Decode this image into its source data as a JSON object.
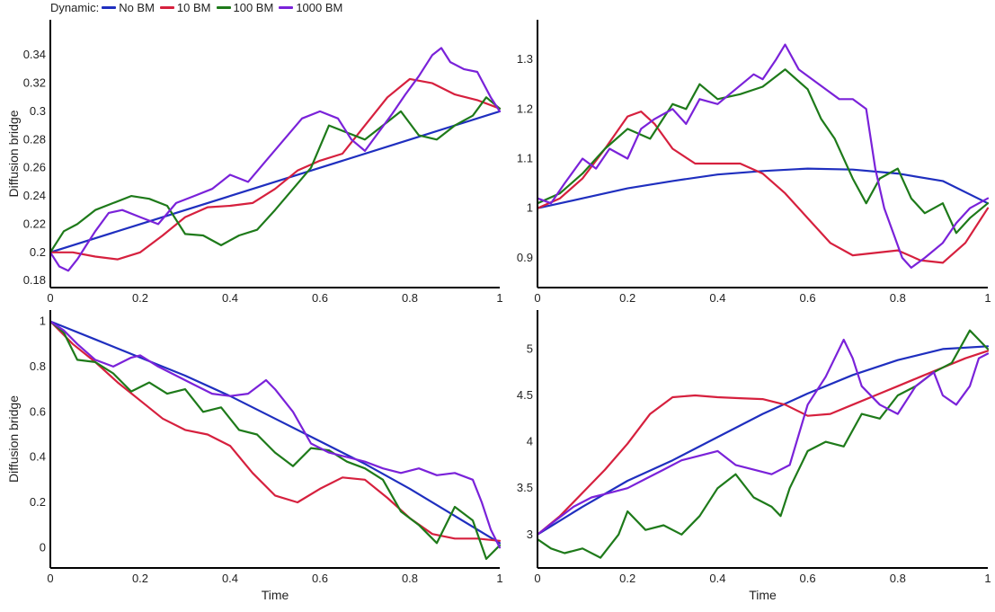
{
  "legend": {
    "title": "Dynamic:",
    "items": [
      {
        "label": "No BM",
        "color": "#1f2fbf"
      },
      {
        "label": "10 BM",
        "color": "#d6203e"
      },
      {
        "label": "100 BM",
        "color": "#1e7a1a"
      },
      {
        "label": "1000 BM",
        "color": "#7a22d9"
      }
    ]
  },
  "chart_data": [
    {
      "type": "line",
      "xlabel": "",
      "ylabel": "Diffusion bridge",
      "xlim": [
        0,
        1
      ],
      "ylim": [
        0.175,
        0.365
      ],
      "xticks": [
        0,
        0.2,
        0.4,
        0.6,
        0.8,
        1
      ],
      "xtick_labels": [
        "0",
        "0.2",
        "0.4",
        "0.6",
        "0.8",
        "1"
      ],
      "yticks": [
        0.18,
        0.2,
        0.22,
        0.24,
        0.26,
        0.28,
        0.3,
        0.32,
        0.34
      ],
      "ytick_labels": [
        "0.18",
        "0.2",
        "0.22",
        "0.24",
        "0.26",
        "0.28",
        "0.3",
        "0.32",
        "0.34"
      ],
      "series": [
        {
          "name": "No BM",
          "x": [
            0,
            0.2,
            0.4,
            0.6,
            0.8,
            1
          ],
          "values": [
            0.2,
            0.22,
            0.24,
            0.26,
            0.28,
            0.3
          ]
        },
        {
          "name": "10 BM",
          "x": [
            0,
            0.05,
            0.1,
            0.15,
            0.2,
            0.25,
            0.3,
            0.35,
            0.4,
            0.45,
            0.5,
            0.55,
            0.6,
            0.65,
            0.7,
            0.75,
            0.8,
            0.85,
            0.9,
            0.95,
            1
          ],
          "values": [
            0.2,
            0.2,
            0.197,
            0.195,
            0.2,
            0.212,
            0.225,
            0.232,
            0.233,
            0.235,
            0.245,
            0.258,
            0.265,
            0.27,
            0.29,
            0.31,
            0.323,
            0.32,
            0.312,
            0.308,
            0.302
          ]
        },
        {
          "name": "100 BM",
          "x": [
            0,
            0.03,
            0.06,
            0.1,
            0.14,
            0.18,
            0.22,
            0.26,
            0.3,
            0.34,
            0.38,
            0.42,
            0.46,
            0.5,
            0.54,
            0.58,
            0.62,
            0.66,
            0.7,
            0.74,
            0.78,
            0.82,
            0.86,
            0.9,
            0.94,
            0.97,
            1
          ],
          "values": [
            0.2,
            0.215,
            0.22,
            0.23,
            0.235,
            0.24,
            0.238,
            0.233,
            0.213,
            0.212,
            0.205,
            0.212,
            0.216,
            0.23,
            0.245,
            0.26,
            0.29,
            0.285,
            0.28,
            0.29,
            0.3,
            0.283,
            0.28,
            0.29,
            0.297,
            0.31,
            0.302
          ]
        },
        {
          "name": "1000 BM",
          "x": [
            0,
            0.02,
            0.04,
            0.06,
            0.08,
            0.1,
            0.13,
            0.16,
            0.2,
            0.24,
            0.28,
            0.32,
            0.36,
            0.4,
            0.44,
            0.48,
            0.52,
            0.56,
            0.6,
            0.64,
            0.67,
            0.7,
            0.73,
            0.76,
            0.79,
            0.82,
            0.85,
            0.87,
            0.89,
            0.92,
            0.95,
            0.98,
            1
          ],
          "values": [
            0.2,
            0.19,
            0.187,
            0.195,
            0.205,
            0.215,
            0.228,
            0.23,
            0.225,
            0.22,
            0.235,
            0.24,
            0.245,
            0.255,
            0.25,
            0.265,
            0.28,
            0.295,
            0.3,
            0.295,
            0.28,
            0.272,
            0.285,
            0.298,
            0.312,
            0.325,
            0.34,
            0.345,
            0.335,
            0.33,
            0.328,
            0.31,
            0.3
          ]
        }
      ]
    },
    {
      "type": "line",
      "xlabel": "",
      "ylabel": "",
      "xlim": [
        0,
        1
      ],
      "ylim": [
        0.84,
        1.38
      ],
      "xticks": [
        0,
        0.2,
        0.4,
        0.6,
        0.8,
        1
      ],
      "xtick_labels": [
        "0",
        "0.2",
        "0.4",
        "0.6",
        "0.8",
        "1"
      ],
      "yticks": [
        0.9,
        1,
        1.1,
        1.2,
        1.3
      ],
      "ytick_labels": [
        "0.9",
        "1",
        "1.1",
        "1.2",
        "1.3"
      ],
      "series": [
        {
          "name": "No BM",
          "x": [
            0,
            0.1,
            0.2,
            0.3,
            0.4,
            0.5,
            0.6,
            0.7,
            0.8,
            0.9,
            1
          ],
          "values": [
            1,
            1.02,
            1.04,
            1.055,
            1.068,
            1.075,
            1.08,
            1.078,
            1.07,
            1.055,
            1.01
          ]
        },
        {
          "name": "10 BM",
          "x": [
            0,
            0.05,
            0.1,
            0.15,
            0.2,
            0.23,
            0.26,
            0.3,
            0.35,
            0.4,
            0.45,
            0.5,
            0.55,
            0.6,
            0.65,
            0.7,
            0.75,
            0.8,
            0.85,
            0.9,
            0.95,
            1
          ],
          "values": [
            1,
            1.02,
            1.06,
            1.12,
            1.185,
            1.195,
            1.17,
            1.12,
            1.09,
            1.09,
            1.09,
            1.07,
            1.03,
            0.98,
            0.93,
            0.905,
            0.91,
            0.915,
            0.895,
            0.89,
            0.93,
            1
          ]
        },
        {
          "name": "100 BM",
          "x": [
            0,
            0.05,
            0.1,
            0.15,
            0.2,
            0.25,
            0.3,
            0.33,
            0.36,
            0.4,
            0.45,
            0.5,
            0.55,
            0.6,
            0.63,
            0.66,
            0.7,
            0.73,
            0.76,
            0.8,
            0.83,
            0.86,
            0.9,
            0.93,
            0.96,
            1
          ],
          "values": [
            1.01,
            1.03,
            1.07,
            1.12,
            1.16,
            1.14,
            1.21,
            1.2,
            1.25,
            1.22,
            1.23,
            1.245,
            1.28,
            1.24,
            1.18,
            1.14,
            1.06,
            1.01,
            1.06,
            1.08,
            1.02,
            0.99,
            1.01,
            0.95,
            0.98,
            1.01
          ]
        },
        {
          "name": "1000 BM",
          "x": [
            0,
            0.03,
            0.06,
            0.1,
            0.13,
            0.16,
            0.2,
            0.23,
            0.26,
            0.3,
            0.33,
            0.36,
            0.4,
            0.44,
            0.48,
            0.5,
            0.53,
            0.55,
            0.58,
            0.61,
            0.64,
            0.67,
            0.7,
            0.73,
            0.75,
            0.77,
            0.79,
            0.81,
            0.83,
            0.86,
            0.9,
            0.93,
            0.96,
            1
          ],
          "values": [
            1.02,
            1.01,
            1.05,
            1.1,
            1.08,
            1.12,
            1.1,
            1.16,
            1.18,
            1.2,
            1.17,
            1.22,
            1.21,
            1.24,
            1.27,
            1.26,
            1.3,
            1.33,
            1.28,
            1.26,
            1.24,
            1.22,
            1.22,
            1.2,
            1.08,
            1.0,
            0.95,
            0.9,
            0.88,
            0.9,
            0.93,
            0.97,
            1.0,
            1.02
          ]
        }
      ]
    },
    {
      "type": "line",
      "xlabel": "Time",
      "ylabel": "Diffusion bridge",
      "xlim": [
        0,
        1
      ],
      "ylim": [
        -0.09,
        1.05
      ],
      "xticks": [
        0,
        0.2,
        0.4,
        0.6,
        0.8,
        1
      ],
      "xtick_labels": [
        "0",
        "0.2",
        "0.4",
        "0.6",
        "0.8",
        "1"
      ],
      "yticks": [
        0,
        0.2,
        0.4,
        0.6,
        0.8,
        1
      ],
      "ytick_labels": [
        "0",
        "0.2",
        "0.4",
        "0.6",
        "0.8",
        "1"
      ],
      "series": [
        {
          "name": "No BM",
          "x": [
            0,
            0.1,
            0.2,
            0.3,
            0.4,
            0.5,
            0.6,
            0.7,
            0.8,
            0.9,
            1
          ],
          "values": [
            1,
            0.92,
            0.84,
            0.76,
            0.67,
            0.57,
            0.47,
            0.37,
            0.26,
            0.14,
            0.02
          ]
        },
        {
          "name": "10 BM",
          "x": [
            0,
            0.05,
            0.1,
            0.15,
            0.2,
            0.25,
            0.3,
            0.35,
            0.4,
            0.45,
            0.5,
            0.55,
            0.6,
            0.65,
            0.7,
            0.75,
            0.8,
            0.85,
            0.9,
            0.95,
            1
          ],
          "values": [
            1,
            0.9,
            0.82,
            0.73,
            0.65,
            0.57,
            0.52,
            0.5,
            0.45,
            0.33,
            0.23,
            0.2,
            0.26,
            0.31,
            0.3,
            0.22,
            0.13,
            0.06,
            0.04,
            0.04,
            0.03
          ]
        },
        {
          "name": "100 BM",
          "x": [
            0,
            0.03,
            0.06,
            0.1,
            0.14,
            0.18,
            0.22,
            0.26,
            0.3,
            0.34,
            0.38,
            0.42,
            0.46,
            0.5,
            0.54,
            0.58,
            0.62,
            0.66,
            0.7,
            0.74,
            0.78,
            0.82,
            0.86,
            0.9,
            0.94,
            0.97,
            1
          ],
          "values": [
            1,
            0.95,
            0.83,
            0.82,
            0.77,
            0.69,
            0.73,
            0.68,
            0.7,
            0.6,
            0.62,
            0.52,
            0.5,
            0.42,
            0.36,
            0.44,
            0.43,
            0.38,
            0.35,
            0.3,
            0.16,
            0.1,
            0.02,
            0.18,
            0.12,
            -0.05,
            0.01
          ]
        },
        {
          "name": "1000 BM",
          "x": [
            0,
            0.03,
            0.06,
            0.1,
            0.14,
            0.18,
            0.2,
            0.24,
            0.28,
            0.32,
            0.36,
            0.4,
            0.44,
            0.48,
            0.5,
            0.54,
            0.58,
            0.62,
            0.66,
            0.7,
            0.74,
            0.78,
            0.82,
            0.86,
            0.9,
            0.94,
            0.96,
            0.98,
            1
          ],
          "values": [
            1,
            0.96,
            0.9,
            0.83,
            0.8,
            0.84,
            0.85,
            0.8,
            0.76,
            0.72,
            0.68,
            0.67,
            0.68,
            0.74,
            0.7,
            0.6,
            0.46,
            0.42,
            0.4,
            0.38,
            0.35,
            0.33,
            0.35,
            0.32,
            0.33,
            0.3,
            0.2,
            0.08,
            0.0
          ]
        }
      ]
    },
    {
      "type": "line",
      "xlabel": "Time",
      "ylabel": "",
      "xlim": [
        0,
        1
      ],
      "ylim": [
        2.64,
        5.42
      ],
      "xticks": [
        0,
        0.2,
        0.4,
        0.6,
        0.8,
        1
      ],
      "xtick_labels": [
        "0",
        "0.2",
        "0.4",
        "0.6",
        "0.8",
        "1"
      ],
      "yticks": [
        3,
        3.5,
        4,
        4.5,
        5
      ],
      "ytick_labels": [
        "3",
        "3.5",
        "4",
        "4.5",
        "5"
      ],
      "series": [
        {
          "name": "No BM",
          "x": [
            0,
            0.1,
            0.2,
            0.3,
            0.4,
            0.5,
            0.6,
            0.7,
            0.8,
            0.9,
            1
          ],
          "values": [
            3,
            3.3,
            3.58,
            3.8,
            4.05,
            4.3,
            4.52,
            4.72,
            4.88,
            5.0,
            5.03
          ]
        },
        {
          "name": "10 BM",
          "x": [
            0,
            0.05,
            0.1,
            0.15,
            0.2,
            0.25,
            0.3,
            0.35,
            0.4,
            0.45,
            0.5,
            0.55,
            0.6,
            0.65,
            0.7,
            0.75,
            0.8,
            0.85,
            0.9,
            0.95,
            1
          ],
          "values": [
            3,
            3.2,
            3.45,
            3.7,
            3.98,
            4.3,
            4.48,
            4.5,
            4.48,
            4.47,
            4.46,
            4.4,
            4.28,
            4.3,
            4.4,
            4.5,
            4.6,
            4.7,
            4.8,
            4.9,
            4.98
          ]
        },
        {
          "name": "100 BM",
          "x": [
            0,
            0.03,
            0.06,
            0.1,
            0.14,
            0.18,
            0.2,
            0.24,
            0.28,
            0.32,
            0.36,
            0.4,
            0.44,
            0.48,
            0.52,
            0.54,
            0.56,
            0.6,
            0.64,
            0.68,
            0.72,
            0.76,
            0.8,
            0.84,
            0.88,
            0.92,
            0.96,
            0.98,
            1
          ],
          "values": [
            2.95,
            2.85,
            2.8,
            2.85,
            2.75,
            3.0,
            3.25,
            3.05,
            3.1,
            3.0,
            3.2,
            3.5,
            3.65,
            3.4,
            3.3,
            3.2,
            3.5,
            3.9,
            4.0,
            3.95,
            4.3,
            4.25,
            4.5,
            4.6,
            4.75,
            4.85,
            5.2,
            5.1,
            5.0
          ]
        },
        {
          "name": "1000 BM",
          "x": [
            0,
            0.04,
            0.08,
            0.12,
            0.16,
            0.2,
            0.24,
            0.28,
            0.32,
            0.36,
            0.4,
            0.44,
            0.48,
            0.52,
            0.56,
            0.6,
            0.64,
            0.68,
            0.7,
            0.72,
            0.76,
            0.8,
            0.84,
            0.88,
            0.9,
            0.93,
            0.96,
            0.98,
            1
          ],
          "values": [
            3.0,
            3.15,
            3.3,
            3.4,
            3.45,
            3.5,
            3.6,
            3.7,
            3.8,
            3.85,
            3.9,
            3.75,
            3.7,
            3.65,
            3.75,
            4.4,
            4.7,
            5.1,
            4.9,
            4.6,
            4.4,
            4.3,
            4.6,
            4.75,
            4.5,
            4.4,
            4.6,
            4.9,
            4.95
          ]
        }
      ]
    }
  ]
}
